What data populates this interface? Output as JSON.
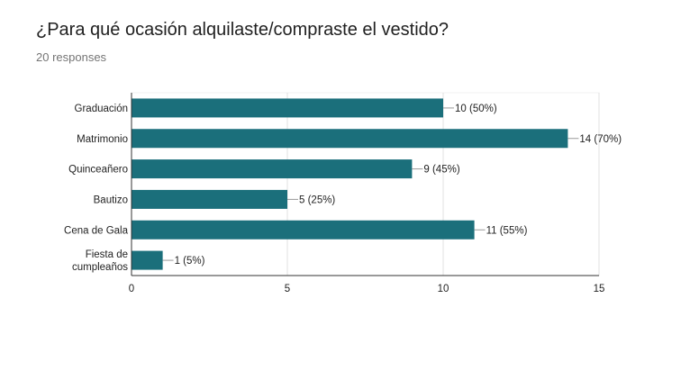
{
  "header": {
    "title": "¿Para qué ocasión alquilaste/compraste el vestido?",
    "responses": "20 responses"
  },
  "colors": {
    "bar": "#1b6f7b",
    "grid": "#e0e0e0",
    "axis": "#333333",
    "leader": "#999999"
  },
  "chart_data": {
    "type": "bar",
    "orientation": "horizontal",
    "categories": [
      "Graduación",
      "Matrimonio",
      "Quinceañero",
      "Bautizo",
      "Cena de Gala",
      "Fiesta de cumpleaños"
    ],
    "category_lines": [
      [
        "Graduación"
      ],
      [
        "Matrimonio"
      ],
      [
        "Quinceañero"
      ],
      [
        "Bautizo"
      ],
      [
        "Cena de Gala"
      ],
      [
        "Fiesta de",
        "cumpleaños"
      ]
    ],
    "values": [
      10,
      14,
      9,
      5,
      11,
      1
    ],
    "data_labels": [
      "10 (50%)",
      "14 (70%)",
      "9 (45%)",
      "5 (25%)",
      "11 (55%)",
      "1 (5%)"
    ],
    "xlim": [
      0,
      15
    ],
    "xticks": [
      0,
      5,
      10,
      15
    ],
    "grid": true,
    "legend": "none"
  }
}
